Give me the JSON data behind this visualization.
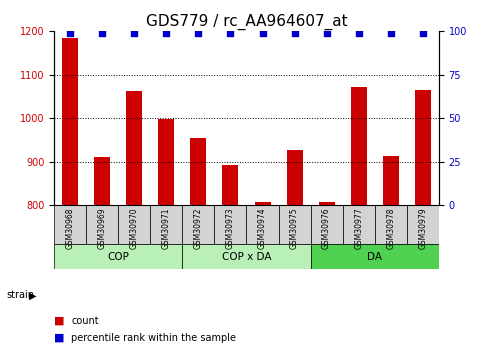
{
  "title": "GDS779 / rc_AA964607_at",
  "samples": [
    "GSM30968",
    "GSM30969",
    "GSM30970",
    "GSM30971",
    "GSM30972",
    "GSM30973",
    "GSM30974",
    "GSM30975",
    "GSM30976",
    "GSM30977",
    "GSM30978",
    "GSM30979"
  ],
  "counts": [
    1185,
    910,
    1063,
    998,
    955,
    893,
    807,
    927,
    807,
    1072,
    912,
    1065
  ],
  "percentiles": [
    99,
    99,
    99,
    99,
    99,
    99,
    99,
    99,
    99,
    99,
    99,
    99
  ],
  "bar_color": "#cc0000",
  "dot_color": "#0000cc",
  "ylim_left": [
    800,
    1200
  ],
  "ylim_right": [
    0,
    100
  ],
  "yticks_left": [
    800,
    900,
    1000,
    1100,
    1200
  ],
  "yticks_right": [
    0,
    25,
    50,
    75,
    100
  ],
  "strain_label": "strain",
  "legend_count_label": "count",
  "legend_pct_label": "percentile rank within the sample",
  "title_fontsize": 11,
  "tick_label_fontsize": 7,
  "left_axis_color": "#cc0000",
  "right_axis_color": "#0000cc",
  "bg_color": "#ffffff",
  "group_boundaries": [
    [
      0,
      3,
      "COP",
      "#b8f0b8"
    ],
    [
      4,
      7,
      "COP x DA",
      "#b8f0b8"
    ],
    [
      8,
      11,
      "DA",
      "#50d050"
    ]
  ],
  "sample_box_color": "#d3d3d3",
  "grid_dotted_at": [
    900,
    1000,
    1100
  ]
}
